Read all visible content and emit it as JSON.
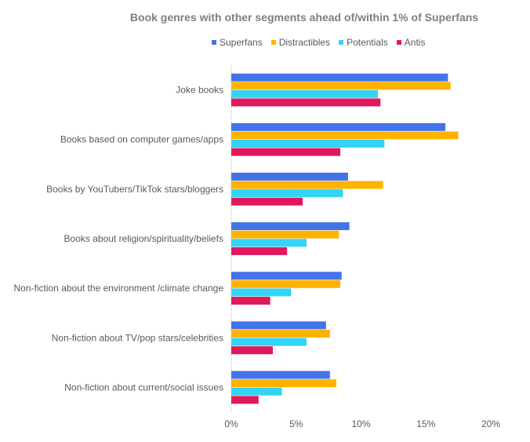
{
  "chart_data": {
    "type": "bar",
    "orientation": "horizontal",
    "title": "Book genres with other segments ahead of/within 1% of Superfans",
    "categories": [
      "Joke books",
      "Books based on computer games/apps",
      "Books by YouTubers/TikTok stars/bloggers",
      "Books about religion/spirituality/beliefs",
      "Non-fiction about the environment /climate change",
      "Non-fiction about TV/pop stars/celebrities",
      "Non-fiction about current/social issues"
    ],
    "series": [
      {
        "name": "Superfans",
        "color": "#4472e8",
        "values": [
          16.7,
          16.5,
          9.0,
          9.1,
          8.5,
          7.3,
          7.6
        ]
      },
      {
        "name": "Distractibles",
        "color": "#ffb300",
        "values": [
          16.9,
          17.5,
          11.7,
          8.3,
          8.4,
          7.6,
          8.1
        ]
      },
      {
        "name": "Potentials",
        "color": "#33d4f5",
        "values": [
          11.3,
          11.8,
          8.6,
          5.8,
          4.6,
          5.8,
          3.9
        ]
      },
      {
        "name": "Antis",
        "color": "#e0195c",
        "values": [
          11.5,
          8.4,
          5.5,
          4.3,
          3.0,
          3.2,
          2.1
        ]
      }
    ],
    "xlim": [
      0,
      20
    ],
    "xticks": [
      0,
      5,
      10,
      15,
      20
    ],
    "xtick_labels": [
      "0%",
      "5%",
      "10%",
      "15%",
      "20%"
    ],
    "xlabel": "",
    "ylabel": "",
    "grid": false,
    "legend_position": "top"
  }
}
